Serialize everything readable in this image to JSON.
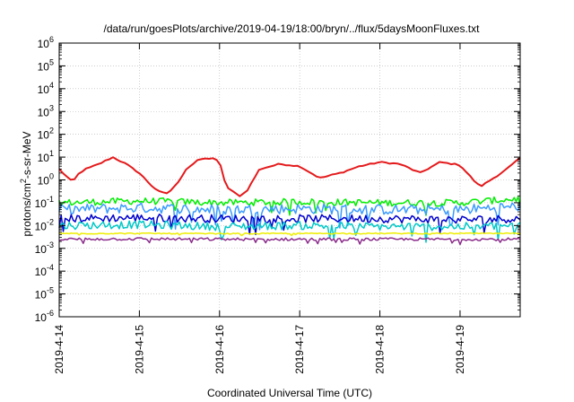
{
  "chart_data": {
    "type": "line",
    "title": "/data/run/goesPlots/archive/2019-04-19/18:00/bryn/../flux/5daysMoonFluxes.txt",
    "xlabel": "Coordinated Universal Time (UTC)",
    "ylabel_parts": [
      "protons/cm",
      "2",
      "-s-sr-MeV"
    ],
    "y_scale": "log",
    "ylim": [
      1e-06,
      1000000.0
    ],
    "y_ticks": [
      {
        "value": 1000000.0,
        "base": "10",
        "exp": "6"
      },
      {
        "value": 100000.0,
        "base": "10",
        "exp": "5"
      },
      {
        "value": 10000.0,
        "base": "10",
        "exp": "4"
      },
      {
        "value": 1000.0,
        "base": "10",
        "exp": "3"
      },
      {
        "value": 100.0,
        "base": "10",
        "exp": "2"
      },
      {
        "value": 10.0,
        "base": "10",
        "exp": "1"
      },
      {
        "value": 1.0,
        "base": "10",
        "exp": "0"
      },
      {
        "value": 0.1,
        "base": "10",
        "exp": "-1"
      },
      {
        "value": 0.01,
        "base": "10",
        "exp": "-2"
      },
      {
        "value": 0.001,
        "base": "10",
        "exp": "-3"
      },
      {
        "value": 0.0001,
        "base": "10",
        "exp": "-4"
      },
      {
        "value": 1e-05,
        "base": "10",
        "exp": "-5"
      },
      {
        "value": 1e-06,
        "base": "10",
        "exp": "-6"
      }
    ],
    "xlim": [
      "2019-04-14 00:00",
      "2019-04-19 18:00"
    ],
    "x_ticks": [
      {
        "value": "2019-04-14 00:00",
        "label": "2019-4-14"
      },
      {
        "value": "2019-04-15 00:00",
        "label": "2019-4-15"
      },
      {
        "value": "2019-04-16 00:00",
        "label": "2019-4-16"
      },
      {
        "value": "2019-04-17 00:00",
        "label": "2019-4-17"
      },
      {
        "value": "2019-04-18 00:00",
        "label": "2019-4-18"
      },
      {
        "value": "2019-04-19 00:00",
        "label": "2019-4-19"
      }
    ],
    "grid": true,
    "series": [
      {
        "color": "#e41a1c",
        "noise": 0,
        "x": [
          "2019-04-14 00:00",
          "2019-04-14 02:00",
          "2019-04-14 04:00",
          "2019-04-14 06:00",
          "2019-04-14 08:00",
          "2019-04-14 12:00",
          "2019-04-14 16:00",
          "2019-04-14 20:00",
          "2019-04-15 00:00",
          "2019-04-15 04:00",
          "2019-04-15 06:00",
          "2019-04-15 08:00",
          "2019-04-15 10:00",
          "2019-04-15 12:00",
          "2019-04-15 14:00",
          "2019-04-15 18:00",
          "2019-04-15 22:00",
          "2019-04-16 00:00",
          "2019-04-16 02:00",
          "2019-04-16 04:00",
          "2019-04-16 06:00",
          "2019-04-16 08:00",
          "2019-04-16 12:00",
          "2019-04-16 18:00",
          "2019-04-17 00:00",
          "2019-04-17 06:00",
          "2019-04-17 12:00",
          "2019-04-17 18:00",
          "2019-04-18 00:00",
          "2019-04-18 06:00",
          "2019-04-18 12:00",
          "2019-04-18 18:00",
          "2019-04-19 00:00",
          "2019-04-19 04:00",
          "2019-04-19 06:00",
          "2019-04-19 10:00",
          "2019-04-19 14:00",
          "2019-04-19 18:00"
        ],
        "y": [
          3,
          1.5,
          0.8,
          2,
          3,
          5,
          10,
          5,
          2,
          0.5,
          0.3,
          0.25,
          0.4,
          1,
          3,
          8,
          9,
          6,
          0.5,
          0.3,
          0.2,
          0.3,
          3,
          5,
          4,
          1.2,
          2,
          4,
          6,
          5,
          2,
          6,
          4.5,
          1,
          0.5,
          1.2,
          3,
          9
        ]
      },
      {
        "color": "#00ee00",
        "noise": 0.3,
        "x": [
          "2019-04-14 00:00",
          "2019-04-15 00:00",
          "2019-04-16 00:00",
          "2019-04-17 00:00",
          "2019-04-18 00:00",
          "2019-04-19 00:00",
          "2019-04-19 18:00"
        ],
        "y": [
          0.1,
          0.12,
          0.1,
          0.11,
          0.1,
          0.1,
          0.15
        ]
      },
      {
        "color": "#3a9bff",
        "noise": 0.45,
        "x": [
          "2019-04-14 00:00",
          "2019-04-15 00:00",
          "2019-04-16 00:00",
          "2019-04-17 00:00",
          "2019-04-18 00:00",
          "2019-04-19 00:00",
          "2019-04-19 18:00"
        ],
        "y": [
          0.05,
          0.06,
          0.05,
          0.055,
          0.05,
          0.05,
          0.07
        ]
      },
      {
        "color": "#0000cc",
        "noise": 0.35,
        "x": [
          "2019-04-14 00:00",
          "2019-04-15 00:00",
          "2019-04-16 00:00",
          "2019-04-17 00:00",
          "2019-04-18 00:00",
          "2019-04-19 00:00",
          "2019-04-19 18:00"
        ],
        "y": [
          0.02,
          0.022,
          0.02,
          0.02,
          0.02,
          0.018,
          0.02
        ]
      },
      {
        "color": "#00c8c8",
        "noise": 0.35,
        "x": [
          "2019-04-14 00:00",
          "2019-04-15 00:00",
          "2019-04-16 00:00",
          "2019-04-17 00:00",
          "2019-04-18 00:00",
          "2019-04-19 00:00",
          "2019-04-19 18:00"
        ],
        "y": [
          0.01,
          0.011,
          0.009,
          0.01,
          0.009,
          0.009,
          0.01
        ]
      },
      {
        "color": "#eeee00",
        "noise": 0.05,
        "x": [
          "2019-04-14 00:00",
          "2019-04-15 00:00",
          "2019-04-16 00:00",
          "2019-04-17 00:00",
          "2019-04-18 00:00",
          "2019-04-19 00:00",
          "2019-04-19 18:00"
        ],
        "y": [
          0.0045,
          0.0045,
          0.0044,
          0.0045,
          0.0045,
          0.0045,
          0.0045
        ]
      },
      {
        "color": "#8b2c8b",
        "noise": 0.12,
        "x": [
          "2019-04-14 00:00",
          "2019-04-15 00:00",
          "2019-04-16 00:00",
          "2019-04-17 00:00",
          "2019-04-18 00:00",
          "2019-04-19 00:00",
          "2019-04-19 18:00"
        ],
        "y": [
          0.0025,
          0.0026,
          0.0025,
          0.0025,
          0.0025,
          0.0025,
          0.0025
        ]
      }
    ]
  }
}
